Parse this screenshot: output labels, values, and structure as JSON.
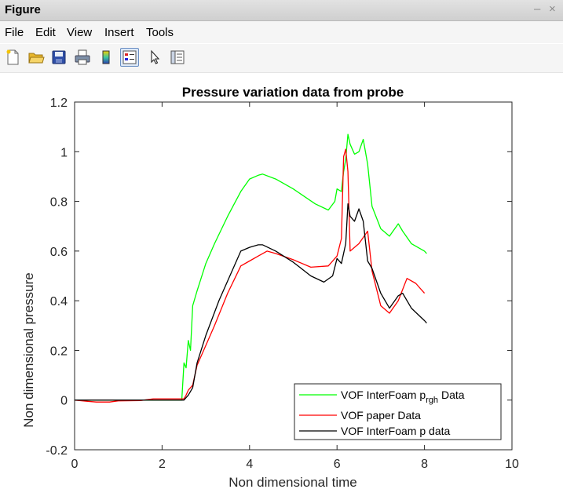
{
  "window": {
    "title": "Figure",
    "minimize_glyph": "–",
    "close_glyph": "×"
  },
  "menu": {
    "items": [
      "File",
      "Edit",
      "View",
      "Insert",
      "Tools"
    ]
  },
  "toolbar": {
    "icons": [
      "new-figure-icon",
      "open-file-icon",
      "save-icon",
      "print-icon",
      "colorbar-icon",
      "legend-icon",
      "pointer-icon",
      "property-editor-icon"
    ]
  },
  "chart_data": {
    "type": "line",
    "title": "Pressure variation data from probe",
    "xlabel": "Non dimensional time",
    "ylabel": "Non dimensional pressure",
    "xlim": [
      0,
      10
    ],
    "ylim": [
      -0.2,
      1.2
    ],
    "xticks": [
      0,
      2,
      4,
      6,
      8,
      10
    ],
    "yticks": [
      -0.2,
      0,
      0.2,
      0.4,
      0.6,
      0.8,
      1,
      1.2
    ],
    "grid": false,
    "legend_position": "bottom-right",
    "legend": {
      "series0_prefix": "VOF InterFoam p",
      "series0_subscript": "rgh",
      "series0_suffix": " Data"
    },
    "series": [
      {
        "name": "VOF InterFoam p_rgh Data",
        "color": "#00ff00",
        "x": [
          0,
          2.45,
          2.5,
          2.55,
          2.6,
          2.65,
          2.7,
          2.8,
          3.0,
          3.2,
          3.5,
          3.8,
          4.0,
          4.2,
          4.3,
          4.6,
          5.0,
          5.5,
          5.8,
          5.95,
          6.0,
          6.1,
          6.15,
          6.2,
          6.25,
          6.3,
          6.4,
          6.5,
          6.6,
          6.7,
          6.8,
          7.0,
          7.2,
          7.4,
          7.5,
          7.7,
          8.0,
          8.05
        ],
        "y": [
          0.0,
          0.0,
          0.15,
          0.13,
          0.24,
          0.2,
          0.38,
          0.44,
          0.55,
          0.63,
          0.74,
          0.84,
          0.89,
          0.905,
          0.91,
          0.89,
          0.85,
          0.79,
          0.765,
          0.8,
          0.85,
          0.84,
          0.92,
          0.97,
          1.07,
          1.03,
          0.99,
          1.0,
          1.05,
          0.95,
          0.78,
          0.69,
          0.66,
          0.71,
          0.68,
          0.63,
          0.6,
          0.59
        ]
      },
      {
        "name": "VOF paper Data",
        "color": "#ff0000",
        "x": [
          0,
          0.3,
          0.5,
          0.8,
          1.0,
          1.5,
          1.8,
          2.5,
          2.55,
          2.6,
          2.7,
          2.8,
          3.0,
          3.2,
          3.5,
          3.8,
          4.0,
          4.2,
          4.4,
          4.6,
          5.0,
          5.4,
          5.8,
          6.0,
          6.1,
          6.15,
          6.2,
          6.25,
          6.3,
          6.5,
          6.7,
          6.8,
          7.0,
          7.2,
          7.4,
          7.6,
          7.8,
          8.0
        ],
        "y": [
          0.0,
          -0.005,
          -0.008,
          -0.008,
          -0.003,
          -0.002,
          0.005,
          0.005,
          0.02,
          0.04,
          0.06,
          0.14,
          0.22,
          0.3,
          0.43,
          0.54,
          0.56,
          0.58,
          0.6,
          0.59,
          0.565,
          0.535,
          0.54,
          0.58,
          0.65,
          0.98,
          1.01,
          0.92,
          0.6,
          0.63,
          0.68,
          0.52,
          0.38,
          0.35,
          0.4,
          0.49,
          0.47,
          0.43
        ]
      },
      {
        "name": "VOF InterFoam p data",
        "color": "#000000",
        "x": [
          0,
          2.5,
          2.55,
          2.6,
          2.7,
          2.8,
          3.0,
          3.3,
          3.6,
          3.8,
          4.0,
          4.2,
          4.3,
          4.6,
          5.0,
          5.4,
          5.7,
          5.9,
          6.0,
          6.1,
          6.2,
          6.25,
          6.3,
          6.4,
          6.5,
          6.6,
          6.7,
          6.8,
          7.0,
          7.2,
          7.4,
          7.5,
          7.7,
          8.0,
          8.05
        ],
        "y": [
          0.0,
          0.0,
          0.01,
          0.02,
          0.05,
          0.15,
          0.26,
          0.4,
          0.52,
          0.6,
          0.615,
          0.625,
          0.625,
          0.6,
          0.555,
          0.5,
          0.475,
          0.5,
          0.57,
          0.55,
          0.63,
          0.79,
          0.74,
          0.72,
          0.77,
          0.72,
          0.56,
          0.53,
          0.43,
          0.37,
          0.42,
          0.43,
          0.37,
          0.32,
          0.31
        ]
      }
    ]
  }
}
